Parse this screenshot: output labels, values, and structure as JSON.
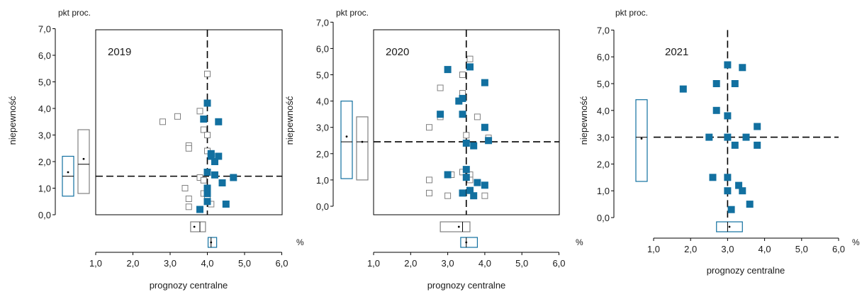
{
  "colors": {
    "blue": "#1270a0",
    "hollow_stroke": "#808080",
    "axis": "#000000",
    "marker_fill_hollow": "#ffffff"
  },
  "chart_data": [
    {
      "type": "scatter",
      "year_label": "2019",
      "units_label": "pkt proc.",
      "xlabel": "prognozy  centralne",
      "x_unit": "%",
      "ylabel": "niepewność",
      "xlim": [
        1.0,
        6.0
      ],
      "ylim": [
        0.0,
        7.0
      ],
      "x_ticks": [
        "1,0",
        "2,0",
        "3,0",
        "4,0",
        "5,0",
        "6,0"
      ],
      "y_ticks": [
        "0,0",
        "1,0",
        "2,0",
        "3,0",
        "4,0",
        "5,0",
        "6,0",
        "7,0"
      ],
      "grid": false,
      "vline": 4.0,
      "hline": 1.45,
      "series": [
        {
          "style": "hollow",
          "points": [
            [
              4.0,
              5.3
            ],
            [
              3.8,
              3.9
            ],
            [
              3.2,
              3.7
            ],
            [
              2.8,
              3.5
            ],
            [
              3.9,
              3.2
            ],
            [
              4.0,
              3.0
            ],
            [
              3.5,
              2.6
            ],
            [
              3.5,
              2.5
            ],
            [
              4.0,
              2.4
            ],
            [
              3.8,
              1.4
            ],
            [
              3.9,
              1.3
            ],
            [
              3.4,
              1.0
            ],
            [
              3.5,
              0.6
            ],
            [
              3.9,
              0.8
            ],
            [
              3.5,
              0.3
            ],
            [
              4.1,
              0.4
            ],
            [
              4.0,
              0.6
            ]
          ]
        },
        {
          "style": "filled",
          "points": [
            [
              4.0,
              4.2
            ],
            [
              3.9,
              3.6
            ],
            [
              4.3,
              3.5
            ],
            [
              4.1,
              2.3
            ],
            [
              4.1,
              2.2
            ],
            [
              4.3,
              2.2
            ],
            [
              4.2,
              2.0
            ],
            [
              4.0,
              1.6
            ],
            [
              4.2,
              1.5
            ],
            [
              4.7,
              1.4
            ],
            [
              4.4,
              1.2
            ],
            [
              4.0,
              1.0
            ],
            [
              4.0,
              0.8
            ],
            [
              4.0,
              0.5
            ],
            [
              4.5,
              0.4
            ],
            [
              3.8,
              0.2
            ]
          ]
        }
      ],
      "box_left": [
        {
          "style": "filled",
          "low": 0.7,
          "high": 2.2,
          "median": 1.45,
          "mean": 1.6
        },
        {
          "style": "hollow",
          "low": 0.8,
          "high": 3.2,
          "median": 1.9,
          "mean": 2.1
        }
      ],
      "box_bottom": [
        {
          "style": "hollow",
          "low": 3.55,
          "high": 3.95,
          "median": 3.8,
          "mean": 3.65
        },
        {
          "style": "filled",
          "low": 4.02,
          "high": 4.25,
          "median": 4.1,
          "mean": 4.1
        }
      ]
    },
    {
      "type": "scatter",
      "year_label": "2020",
      "units_label": "pkt proc.",
      "xlabel": "prognozy  centralne",
      "x_unit": "%",
      "ylabel": "niepewność",
      "xlim": [
        1.0,
        6.0
      ],
      "ylim": [
        0.0,
        7.0
      ],
      "x_ticks": [
        "1,0",
        "2,0",
        "3,0",
        "4,0",
        "5,0",
        "6,0"
      ],
      "y_ticks": [
        "0,0",
        "1,0",
        "2,0",
        "3,0",
        "4,0",
        "5,0",
        "6,0",
        "7,0"
      ],
      "grid": false,
      "vline": 3.5,
      "hline": 2.45,
      "series": [
        {
          "style": "hollow",
          "points": [
            [
              3.6,
              5.6
            ],
            [
              3.4,
              5.0
            ],
            [
              2.8,
              4.5
            ],
            [
              3.4,
              4.3
            ],
            [
              2.8,
              3.4
            ],
            [
              3.8,
              3.4
            ],
            [
              2.5,
              3.0
            ],
            [
              3.5,
              2.7
            ],
            [
              4.1,
              2.6
            ],
            [
              3.6,
              1.2
            ],
            [
              3.1,
              1.2
            ],
            [
              3.4,
              1.3
            ],
            [
              3.6,
              1.0
            ],
            [
              2.5,
              1.0
            ],
            [
              2.5,
              0.5
            ],
            [
              3.0,
              0.4
            ],
            [
              4.0,
              0.4
            ]
          ]
        },
        {
          "style": "filled",
          "points": [
            [
              3.0,
              5.2
            ],
            [
              3.6,
              5.3
            ],
            [
              4.0,
              4.7
            ],
            [
              3.4,
              4.1
            ],
            [
              3.3,
              4.0
            ],
            [
              2.8,
              3.5
            ],
            [
              3.4,
              3.5
            ],
            [
              4.0,
              3.0
            ],
            [
              4.1,
              2.5
            ],
            [
              3.5,
              2.4
            ],
            [
              3.7,
              2.3
            ],
            [
              3.5,
              1.4
            ],
            [
              3.0,
              1.2
            ],
            [
              3.5,
              1.1
            ],
            [
              3.8,
              0.9
            ],
            [
              4.0,
              0.8
            ],
            [
              3.6,
              0.6
            ],
            [
              3.4,
              0.5
            ],
            [
              3.7,
              0.4
            ]
          ]
        }
      ],
      "box_left": [
        {
          "style": "filled",
          "low": 1.05,
          "high": 4.0,
          "median": 2.45,
          "mean": 2.65
        },
        {
          "style": "hollow",
          "low": 1.0,
          "high": 3.4,
          "median": 2.45,
          "mean": 2.45
        }
      ],
      "box_bottom": [
        {
          "style": "hollow",
          "low": 2.8,
          "high": 3.6,
          "median": 3.4,
          "mean": 3.3
        },
        {
          "style": "filled",
          "low": 3.35,
          "high": 3.8,
          "median": 3.5,
          "mean": 3.5
        }
      ]
    },
    {
      "type": "scatter",
      "year_label": "2021",
      "units_label": "pkt proc.",
      "xlabel": "prognozy  centralne",
      "x_unit": "%",
      "ylabel": "niepewność",
      "xlim": [
        1.0,
        6.0
      ],
      "ylim": [
        0.0,
        7.0
      ],
      "x_ticks": [
        "1,0",
        "2,0",
        "3,0",
        "4,0",
        "5,0",
        "6,0"
      ],
      "y_ticks": [
        "0,0",
        "1,0",
        "2,0",
        "3,0",
        "4,0",
        "5,0",
        "6,0",
        "7,0"
      ],
      "grid": false,
      "vline": 3.0,
      "hline": 3.0,
      "series": [
        {
          "style": "filled",
          "points": [
            [
              3.0,
              5.7
            ],
            [
              3.4,
              5.6
            ],
            [
              2.7,
              5.0
            ],
            [
              3.2,
              5.0
            ],
            [
              1.8,
              4.8
            ],
            [
              2.7,
              4.0
            ],
            [
              3.0,
              3.8
            ],
            [
              3.8,
              3.4
            ],
            [
              2.5,
              3.0
            ],
            [
              3.0,
              3.0
            ],
            [
              3.5,
              3.0
            ],
            [
              3.2,
              2.7
            ],
            [
              3.8,
              2.7
            ],
            [
              2.6,
              1.5
            ],
            [
              3.0,
              1.5
            ],
            [
              3.3,
              1.2
            ],
            [
              3.0,
              1.0
            ],
            [
              3.4,
              1.0
            ],
            [
              3.6,
              0.5
            ],
            [
              3.1,
              0.3
            ]
          ]
        }
      ],
      "box_left": [
        {
          "style": "filled",
          "low": 1.35,
          "high": 4.4,
          "median": 3.0,
          "mean": 2.95
        }
      ],
      "box_bottom": [
        {
          "style": "filled",
          "low": 2.7,
          "high": 3.4,
          "median": 3.0,
          "mean": 3.05
        }
      ]
    }
  ]
}
